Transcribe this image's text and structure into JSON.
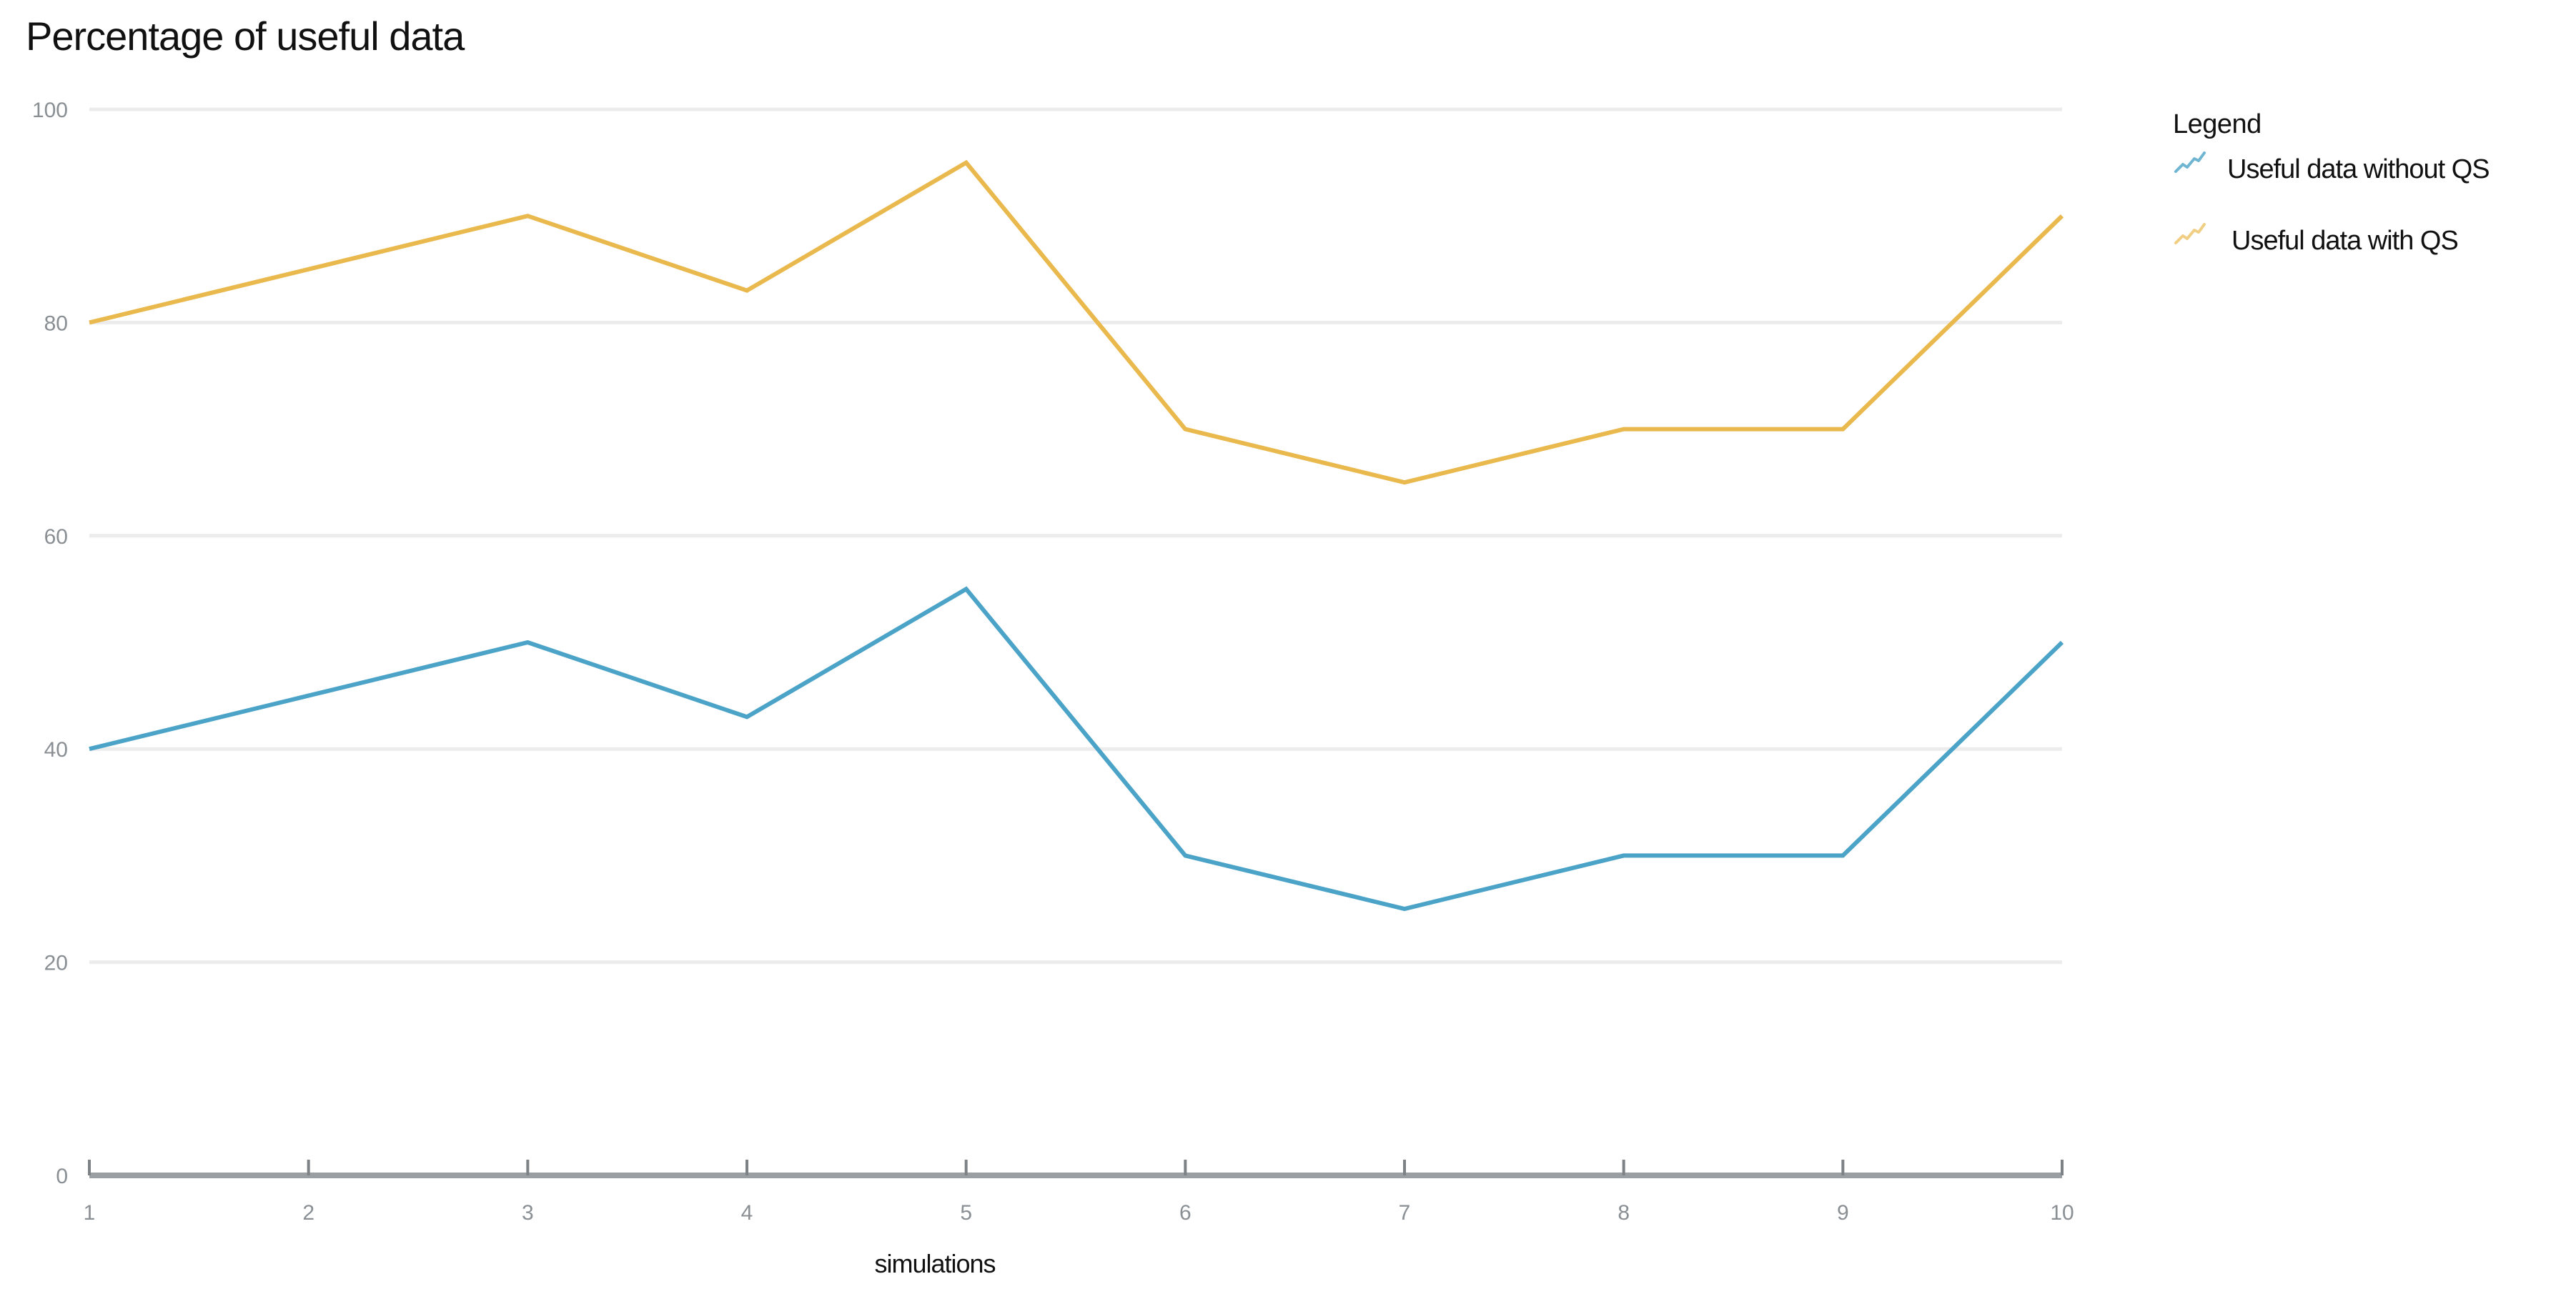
{
  "title": "Percentage of useful data",
  "legend": {
    "title": "Legend",
    "items": [
      {
        "label": "Useful data without QS",
        "color": "#4ba3c7",
        "icon": "line-series-icon"
      },
      {
        "label": "Useful data with QS",
        "color": "#e9b94e",
        "icon": "line-series-icon"
      }
    ]
  },
  "axes": {
    "xlabel": "simulations",
    "ylabel": "",
    "x_ticks": [
      "1",
      "2",
      "3",
      "4",
      "5",
      "6",
      "7",
      "8",
      "9",
      "10"
    ],
    "y_ticks": [
      "0",
      "20",
      "40",
      "60",
      "80",
      "100"
    ]
  },
  "colors": {
    "series_without_qs": "#4ba3c7",
    "series_with_qs": "#e9b94e",
    "axis": "#9a9fa3",
    "grid": "#ececec",
    "tick_label": "#8a8f94"
  },
  "chart_data": {
    "type": "line",
    "title": "Percentage of useful data",
    "xlabel": "simulations",
    "ylabel": "",
    "x": [
      1,
      2,
      3,
      4,
      5,
      6,
      7,
      8,
      9,
      10
    ],
    "categories": [
      "1",
      "2",
      "3",
      "4",
      "5",
      "6",
      "7",
      "8",
      "9",
      "10"
    ],
    "series": [
      {
        "name": "Useful data without QS",
        "color": "#4ba3c7",
        "values": [
          40,
          45,
          50,
          43,
          55,
          30,
          25,
          30,
          30,
          50
        ]
      },
      {
        "name": "Useful data with QS",
        "color": "#e9b94e",
        "values": [
          80,
          85,
          90,
          83,
          95,
          70,
          65,
          70,
          70,
          90
        ]
      }
    ],
    "ylim": [
      0,
      100
    ],
    "yticks": [
      0,
      20,
      40,
      60,
      80,
      100
    ],
    "grid": true,
    "legend_position": "right",
    "legend_title": "Legend"
  }
}
